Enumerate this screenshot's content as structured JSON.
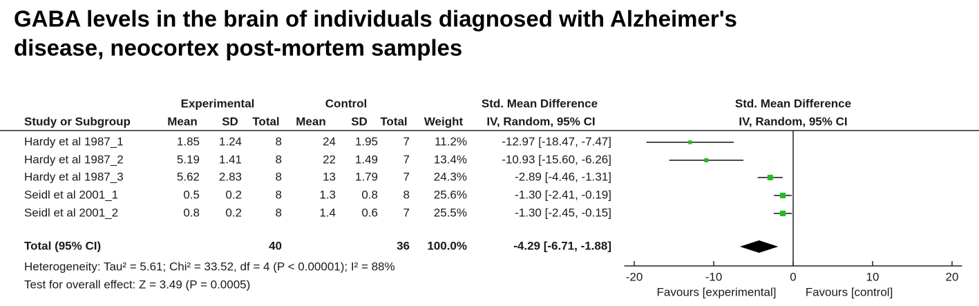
{
  "title": [
    "GABA levels in the brain of individuals diagnosed with Alzheimer's",
    "disease, neocortex post-mortem samples"
  ],
  "table": {
    "group_headers": [
      "Experimental",
      "Control",
      "Std. Mean Difference"
    ],
    "columns": [
      "Study or Subgroup",
      "Mean",
      "SD",
      "Total",
      "Mean",
      "SD",
      "Total",
      "Weight",
      "IV, Random, 95% CI"
    ],
    "rows": [
      [
        "Hardy et al 1987_1",
        "1.85",
        "1.24",
        "8",
        "24",
        "1.95",
        "7",
        "11.2%",
        "-12.97 [-18.47, -7.47]"
      ],
      [
        "Hardy et al 1987_2",
        "5.19",
        "1.41",
        "8",
        "22",
        "1.49",
        "7",
        "13.4%",
        "-10.93 [-15.60, -6.26]"
      ],
      [
        "Hardy et al 1987_3",
        "5.62",
        "2.83",
        "8",
        "13",
        "1.79",
        "7",
        "24.3%",
        "-2.89 [-4.46, -1.31]"
      ],
      [
        "Seidl et al 2001_1",
        "0.5",
        "0.2",
        "8",
        "1.3",
        "0.8",
        "8",
        "25.6%",
        "-1.30 [-2.41, -0.19]"
      ],
      [
        "Seidl et al 2001_2",
        "0.8",
        "0.2",
        "8",
        "1.4",
        "0.6",
        "7",
        "25.5%",
        "-1.30 [-2.45, -0.15]"
      ]
    ],
    "total": [
      "Total (95% CI)",
      "40",
      "36",
      "100.0%",
      "-4.29 [-6.71, -1.88]"
    ],
    "heterogeneity": "Heterogeneity: Tau² = 5.61; Chi² = 33.52, df = 4 (P < 0.00001); I² = 88%",
    "overall_effect": "Test for overall effect: Z = 3.49 (P = 0.0005)"
  },
  "chart_data": {
    "type": "forest",
    "title": "Std. Mean Difference",
    "subtitle": "IV, Random, 95% CI",
    "estimates": [
      -12.97,
      -10.93,
      -2.89,
      -1.3,
      -1.3
    ],
    "lower": [
      -18.47,
      -15.6,
      -4.46,
      -2.41,
      -2.45
    ],
    "upper": [
      -7.47,
      -6.26,
      -1.31,
      -0.19,
      -0.15
    ],
    "weights": [
      11.2,
      13.4,
      24.3,
      25.6,
      25.5
    ],
    "total": {
      "estimate": -4.29,
      "lower": -6.71,
      "upper": -1.88
    },
    "color": "#22bb22",
    "xlim": [
      -21,
      21
    ],
    "xticks": [
      -20,
      -10,
      0,
      10,
      20
    ],
    "xlabels": [
      "Favours [experimental]",
      "Favours [control]"
    ]
  }
}
